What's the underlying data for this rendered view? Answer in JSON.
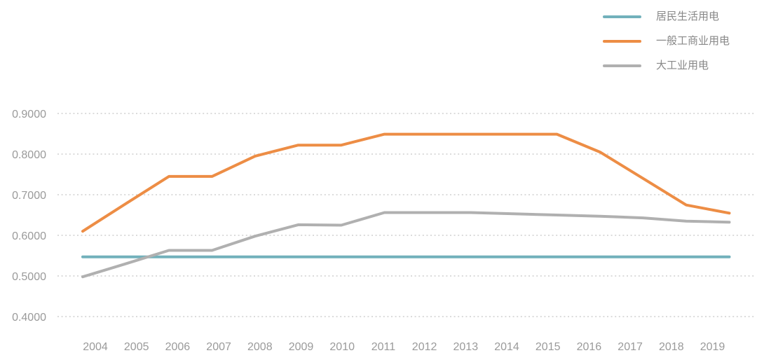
{
  "chart_data": {
    "type": "line",
    "title": "",
    "x": [
      "2004",
      "2005",
      "2006",
      "2007",
      "2008",
      "2009",
      "2010",
      "2011",
      "2012",
      "2013",
      "2014",
      "2015",
      "2016",
      "2017",
      "2018",
      "2019"
    ],
    "yticks": [
      "0.9000",
      "0.8000",
      "0.7000",
      "0.6000",
      "0.5000",
      "0.4000"
    ],
    "ylim": [
      0.4,
      0.9
    ],
    "grid": "horizontal-dotted",
    "legend_position": "top-right",
    "series": [
      {
        "id": "residential",
        "name": "居民生活用电",
        "color": "#72B1BB",
        "values": [
          0.5469,
          0.5469,
          0.5469,
          0.5469,
          0.5469,
          0.5469,
          0.5469,
          0.5469,
          0.5469,
          0.5469,
          0.5469,
          0.5469,
          0.5469,
          0.5469,
          0.5469,
          0.5469
        ]
      },
      {
        "id": "general-commercial",
        "name": "一般工商业用电",
        "color": "#ED8D45",
        "values": [
          0.61,
          0.678,
          0.745,
          0.745,
          0.795,
          0.822,
          0.822,
          0.849,
          0.849,
          0.849,
          0.849,
          0.849,
          0.805,
          0.74,
          0.6747,
          0.6547
        ]
      },
      {
        "id": "large-industry",
        "name": "大工业用电",
        "color": "#B0B0B0",
        "values": [
          0.498,
          0.53,
          0.563,
          0.563,
          0.598,
          0.626,
          0.625,
          0.656,
          0.656,
          0.656,
          0.653,
          0.65,
          0.647,
          0.643,
          0.635,
          0.6324
        ]
      }
    ]
  },
  "colors": {
    "background": "#FFFFFF",
    "axis_text": "#9A9A9A",
    "legend_text": "#888888",
    "gridline": "#D6D6D6"
  }
}
